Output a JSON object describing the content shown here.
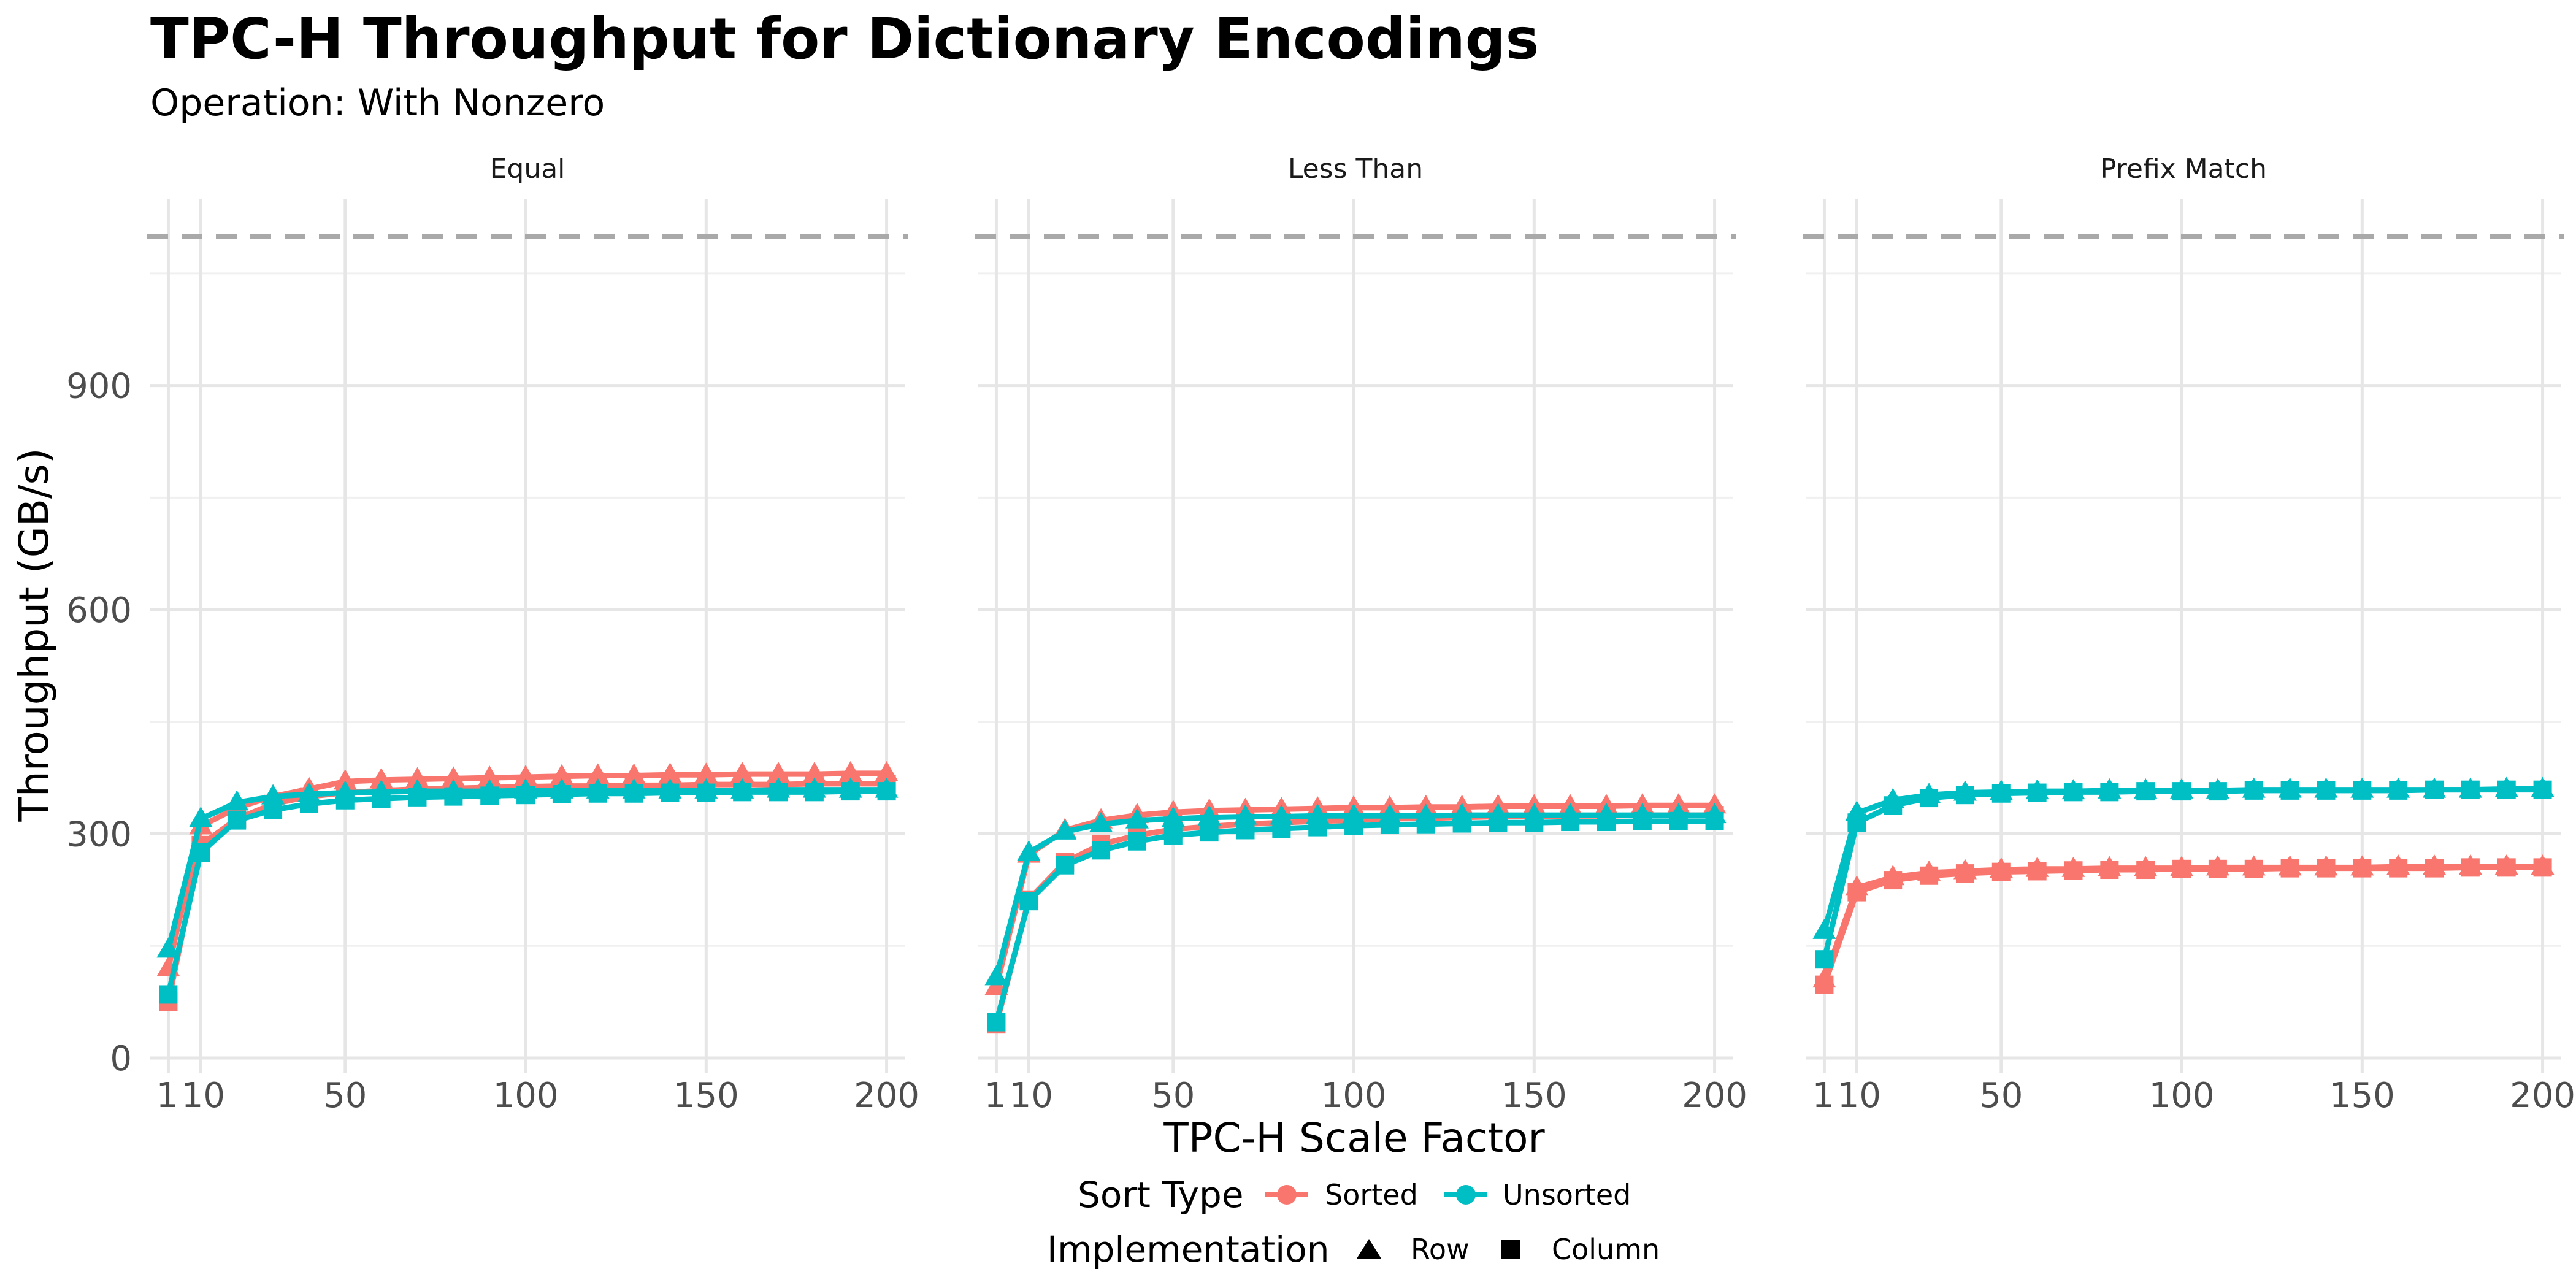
{
  "chart_data": {
    "type": "line",
    "title": "TPC-H Throughput for Dictionary Encodings",
    "subtitle": "Operation: With Nonzero",
    "xlabel": "TPC-H Scale Factor",
    "ylabel": "Throughput (GB/s)",
    "x": [
      1,
      10,
      20,
      30,
      40,
      50,
      60,
      70,
      80,
      90,
      100,
      110,
      120,
      130,
      140,
      150,
      160,
      170,
      180,
      190,
      200
    ],
    "x_ticks": [
      {
        "value": 1,
        "label": "1"
      },
      {
        "value": 10,
        "label": "10"
      },
      {
        "value": 50,
        "label": "50"
      },
      {
        "value": 100,
        "label": "100"
      },
      {
        "value": 150,
        "label": "150"
      },
      {
        "value": 200,
        "label": "200"
      }
    ],
    "y_ticks": [
      0,
      300,
      600,
      900
    ],
    "xlim": [
      -4,
      205
    ],
    "ylim": [
      0,
      1100
    ],
    "reference_line": {
      "y": 1100,
      "style": "dashed",
      "color": "#A9A9A9"
    },
    "colors": {
      "Sorted": "#F8766D",
      "Unsorted": "#00BFC4"
    },
    "grid": true,
    "legend": {
      "position": "bottom",
      "sort_title": "Sort Type",
      "sort_entries": [
        "Sorted",
        "Unsorted"
      ],
      "impl_title": "Implementation",
      "impl_entries": [
        "Row",
        "Column"
      ]
    },
    "panels": [
      {
        "name": "Equal",
        "series": [
          {
            "sort": "Sorted",
            "impl": "Row",
            "values": [
              120,
              310,
              335,
              350,
              360,
              370,
              372,
              373,
              374,
              375,
              376,
              377,
              378,
              378,
              379,
              379,
              380,
              380,
              380,
              381,
              381
            ]
          },
          {
            "sort": "Sorted",
            "impl": "Column",
            "values": [
              75,
              285,
              320,
              340,
              350,
              355,
              358,
              360,
              361,
              362,
              363,
              364,
              364,
              365,
              365,
              366,
              366,
              366,
              367,
              367,
              367
            ]
          },
          {
            "sort": "Unsorted",
            "impl": "Row",
            "values": [
              145,
              320,
              342,
              350,
              353,
              355,
              356,
              357,
              357,
              357,
              358,
              358,
              358,
              358,
              358,
              358,
              358,
              359,
              359,
              359,
              359
            ]
          },
          {
            "sort": "Unsorted",
            "impl": "Column",
            "values": [
              85,
              275,
              318,
              332,
              340,
              345,
              347,
              349,
              350,
              351,
              352,
              353,
              354,
              354,
              355,
              355,
              356,
              356,
              356,
              357,
              357
            ]
          }
        ]
      },
      {
        "name": "Less Than",
        "series": [
          {
            "sort": "Sorted",
            "impl": "Row",
            "values": [
              95,
              272,
              305,
              318,
              325,
              329,
              331,
              332,
              333,
              334,
              335,
              335,
              336,
              336,
              337,
              337,
              337,
              337,
              338,
              338,
              338
            ]
          },
          {
            "sort": "Sorted",
            "impl": "Column",
            "values": [
              45,
              212,
              262,
              286,
              298,
              306,
              310,
              313,
              315,
              317,
              318,
              320,
              321,
              322,
              323,
              323,
              324,
              324,
              325,
              325,
              325
            ]
          },
          {
            "sort": "Unsorted",
            "impl": "Row",
            "values": [
              108,
              275,
              303,
              313,
              318,
              320,
              322,
              323,
              323,
              324,
              324,
              324,
              324,
              325,
              325,
              325,
              325,
              325,
              325,
              325,
              325
            ]
          },
          {
            "sort": "Unsorted",
            "impl": "Column",
            "values": [
              48,
              210,
              258,
              278,
              290,
              298,
              302,
              305,
              307,
              309,
              311,
              312,
              313,
              314,
              315,
              315,
              316,
              316,
              317,
              317,
              317
            ]
          }
        ]
      },
      {
        "name": "Prefix Match",
        "series": [
          {
            "sort": "Sorted",
            "impl": "Row",
            "values": [
              105,
              228,
              242,
              248,
              250,
              252,
              253,
              253,
              254,
              254,
              254,
              255,
              255,
              255,
              255,
              255,
              256,
              256,
              256,
              256,
              256
            ]
          },
          {
            "sort": "Sorted",
            "impl": "Column",
            "values": [
              98,
              222,
              238,
              244,
              247,
              249,
              250,
              251,
              252,
              252,
              253,
              253,
              253,
              254,
              254,
              254,
              254,
              254,
              255,
              255,
              255
            ]
          },
          {
            "sort": "Unsorted",
            "impl": "Row",
            "values": [
              170,
              328,
              345,
              352,
              355,
              356,
              357,
              357,
              358,
              358,
              358,
              358,
              359,
              359,
              359,
              359,
              359,
              359,
              359,
              360,
              360
            ]
          },
          {
            "sort": "Unsorted",
            "impl": "Column",
            "values": [
              132,
              315,
              338,
              348,
              352,
              354,
              355,
              356,
              356,
              357,
              357,
              357,
              358,
              358,
              358,
              358,
              358,
              359,
              359,
              359,
              359
            ]
          }
        ]
      }
    ]
  }
}
